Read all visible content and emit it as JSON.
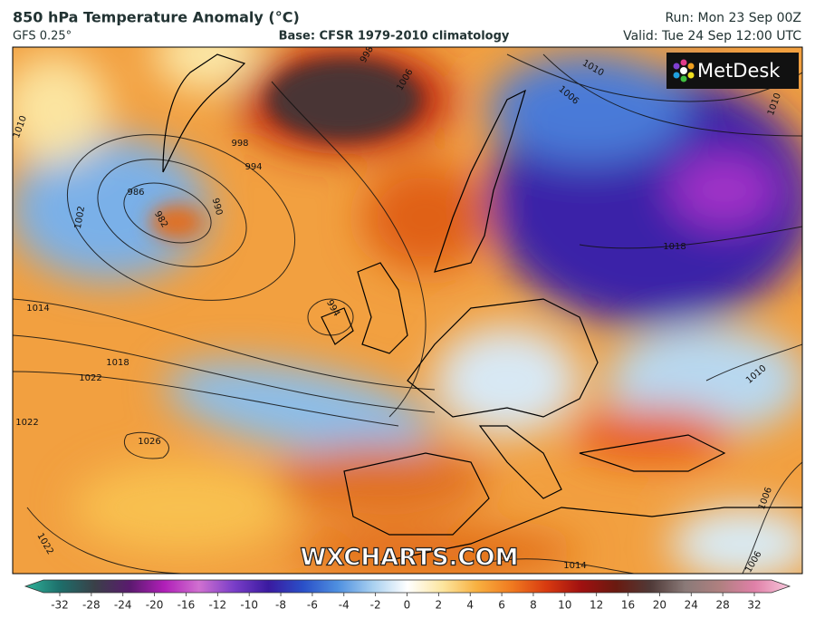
{
  "header": {
    "title": "850 hPa Temperature Anomaly (°C)",
    "model": "GFS 0.25°",
    "base": "Base: CFSR 1979-2010 climatology",
    "run": "Run: Mon 23 Sep 00Z",
    "valid": "Valid: Tue 24 Sep 12:00 UTC"
  },
  "logo": "MetDesk",
  "watermark": "WXCHARTS.COM",
  "isobar_labels": [
    "998",
    "994",
    "986",
    "982",
    "990",
    "1002",
    "1014",
    "1018",
    "1022",
    "1022",
    "1026",
    "1022",
    "1006",
    "998",
    "1006",
    "1010",
    "1018",
    "1010",
    "1006",
    "1014",
    "1006",
    "994",
    "1010",
    "1010"
  ],
  "colorbar": {
    "ticks": [
      -32,
      -28,
      -24,
      -20,
      -16,
      -12,
      -10,
      -8,
      -6,
      -4,
      -2,
      0,
      2,
      4,
      6,
      8,
      10,
      12,
      16,
      20,
      24,
      28,
      32
    ],
    "colors": [
      "#2fb39a",
      "#1d6e6a",
      "#3a4048",
      "#5a1a6e",
      "#b01fb8",
      "#d070d0",
      "#7a3ec8",
      "#3a1aa0",
      "#2a50c8",
      "#4f90e0",
      "#a8d0f0",
      "#ffffff",
      "#fce6a0",
      "#f8b040",
      "#f07a20",
      "#d83a10",
      "#a01010",
      "#6a1a10",
      "#503a38",
      "#8a7a78",
      "#b08080",
      "#e080a8",
      "#f8c8dc"
    ]
  }
}
